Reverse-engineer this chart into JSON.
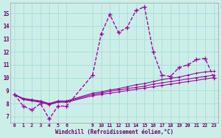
{
  "background_color": "#cceee8",
  "grid_color": "#aadddd",
  "line_color": "#990099",
  "xlabel": "Windchill (Refroidissement éolien,°C)",
  "xlim": [
    -0.5,
    23.5
  ],
  "ylim": [
    6.5,
    15.8
  ],
  "yticks": [
    7,
    8,
    9,
    10,
    11,
    12,
    13,
    14,
    15
  ],
  "xticks": [
    0,
    1,
    2,
    3,
    4,
    5,
    6,
    9,
    10,
    11,
    12,
    13,
    14,
    15,
    16,
    17,
    18,
    19,
    20,
    21,
    22,
    23
  ],
  "series1_x": [
    0,
    1,
    2,
    3,
    4,
    5,
    6,
    9,
    10,
    11,
    12,
    13,
    14,
    15,
    16,
    17,
    18,
    19,
    20,
    21,
    22,
    23
  ],
  "series1_y": [
    8.7,
    7.8,
    7.5,
    8.0,
    6.8,
    7.8,
    7.8,
    10.2,
    13.4,
    14.9,
    13.5,
    13.9,
    15.2,
    15.5,
    12.0,
    10.2,
    10.1,
    10.8,
    11.0,
    11.4,
    11.5,
    10.0
  ],
  "series2_x": [
    0,
    1,
    2,
    3,
    4,
    5,
    6,
    9,
    10,
    11,
    12,
    13,
    14,
    15,
    16,
    17,
    18,
    19,
    20,
    21,
    22,
    23
  ],
  "series2_y": [
    8.7,
    8.3,
    8.2,
    8.1,
    7.9,
    8.1,
    8.1,
    8.6,
    8.7,
    8.8,
    8.9,
    9.0,
    9.1,
    9.2,
    9.3,
    9.4,
    9.5,
    9.6,
    9.7,
    9.8,
    9.9,
    10.0
  ],
  "series3_x": [
    0,
    1,
    2,
    3,
    4,
    5,
    6,
    9,
    10,
    11,
    12,
    13,
    14,
    15,
    16,
    17,
    18,
    19,
    20,
    21,
    22,
    23
  ],
  "series3_y": [
    8.7,
    8.35,
    8.25,
    8.15,
    7.95,
    8.15,
    8.15,
    8.7,
    8.8,
    8.95,
    9.05,
    9.15,
    9.25,
    9.35,
    9.5,
    9.6,
    9.7,
    9.8,
    9.9,
    10.0,
    10.1,
    10.2
  ],
  "series4_x": [
    0,
    1,
    2,
    3,
    4,
    5,
    6,
    9,
    10,
    11,
    12,
    13,
    14,
    15,
    16,
    17,
    18,
    19,
    20,
    21,
    22,
    23
  ],
  "series4_y": [
    8.7,
    8.4,
    8.3,
    8.2,
    8.0,
    8.2,
    8.2,
    8.8,
    8.9,
    9.05,
    9.15,
    9.3,
    9.45,
    9.55,
    9.7,
    9.85,
    9.95,
    10.05,
    10.2,
    10.35,
    10.45,
    10.5
  ]
}
